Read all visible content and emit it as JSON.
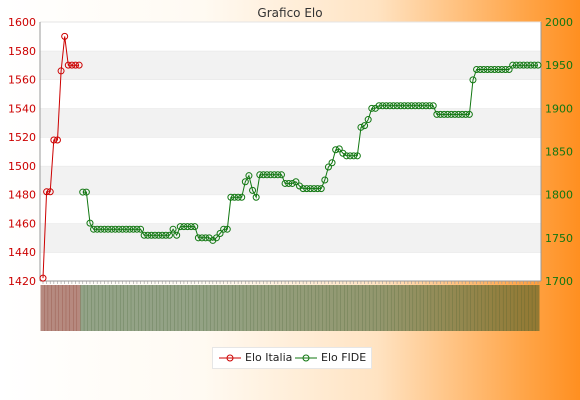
{
  "chart_data": {
    "type": "line",
    "title": "Grafico Elo",
    "y_left": {
      "ylim": [
        1420,
        1600
      ],
      "ticks": [
        1420,
        1440,
        1460,
        1480,
        1500,
        1520,
        1540,
        1560,
        1580,
        1600
      ]
    },
    "y_right": {
      "ylim": [
        1700,
        2000
      ],
      "ticks": [
        1700,
        1750,
        1800,
        1850,
        1900,
        1950,
        2000
      ]
    },
    "grid": "horizontal alternating bands",
    "legend": {
      "placement": "bottom-center"
    },
    "x": {
      "count": 106
    },
    "series": [
      {
        "name": "Elo Italia",
        "axis": "left",
        "color": "#cc0000",
        "values": [
          1422,
          1482,
          1482,
          1518,
          1518,
          1566,
          1590,
          1570,
          1570,
          1570,
          1570
        ]
      },
      {
        "name": "Elo FIDE",
        "axis": "right",
        "color": "#117711",
        "values": [
          null,
          null,
          null,
          null,
          null,
          null,
          null,
          null,
          null,
          null,
          null,
          1803,
          1803,
          1767,
          1760,
          1760,
          1760,
          1760,
          1760,
          1760,
          1760,
          1760,
          1760,
          1760,
          1760,
          1760,
          1760,
          1760,
          1753,
          1753,
          1753,
          1753,
          1753,
          1753,
          1753,
          1753,
          1760,
          1753,
          1763,
          1763,
          1763,
          1763,
          1763,
          1750,
          1750,
          1750,
          1750,
          1747,
          1750,
          1755,
          1760,
          1760,
          1797,
          1797,
          1797,
          1797,
          1815,
          1822,
          1805,
          1797,
          1823,
          1823,
          1823,
          1823,
          1823,
          1823,
          1823,
          1813,
          1813,
          1813,
          1815,
          1810,
          1807,
          1807,
          1807,
          1807,
          1807,
          1807,
          1817,
          1832,
          1837,
          1852,
          1853,
          1848,
          1845,
          1845,
          1845,
          1845,
          1878,
          1880,
          1887,
          1900,
          1900,
          1903,
          1903,
          1903,
          1903,
          1903,
          1903,
          1903,
          1903,
          1903,
          1903,
          1903,
          1903,
          1903,
          1903,
          1903,
          1903
        ],
        "tail": {
          "values": [
            1893,
            1893,
            1893,
            1893,
            1893,
            1893,
            1893,
            1893,
            1893,
            1893,
            1933,
            1945,
            1945,
            1945,
            1945,
            1945,
            1945,
            1945,
            1945,
            1945,
            1945,
            1950,
            1950,
            1950,
            1950,
            1950,
            1950,
            1950,
            1950
          ]
        }
      }
    ]
  }
}
